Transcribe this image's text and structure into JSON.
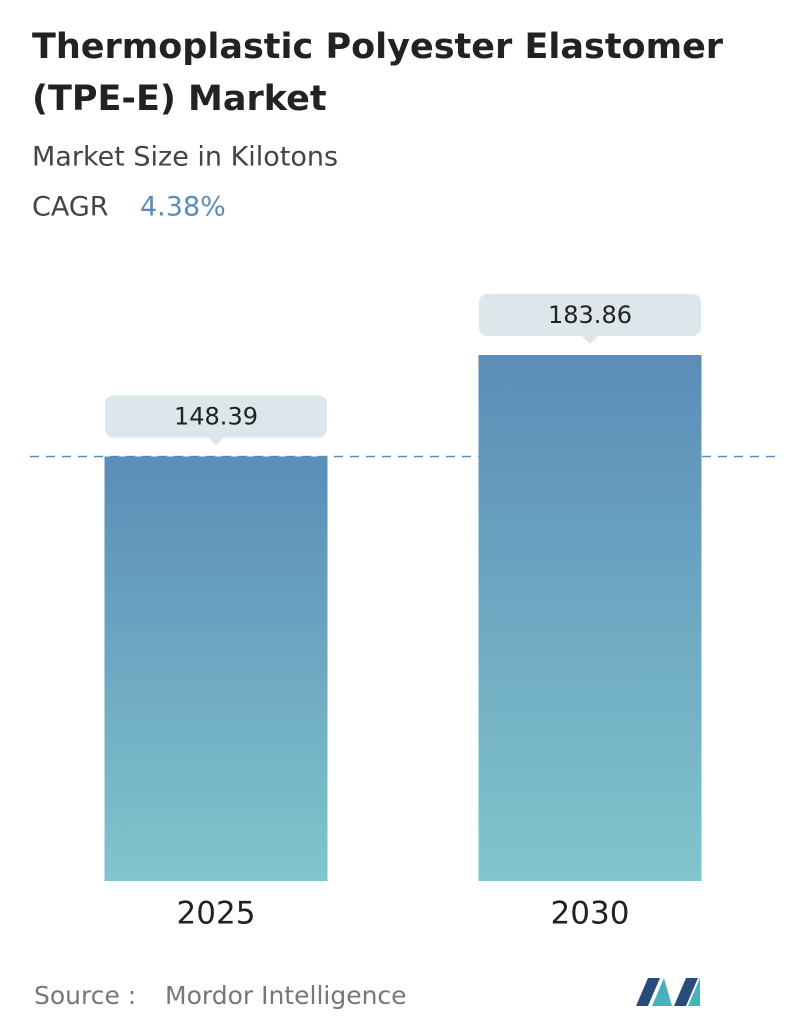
{
  "chart_data": {
    "type": "bar",
    "title": [
      "Thermoplastic Polyester Elastomer",
      "(TPE-E) Market"
    ],
    "subtitle": "Market Size in Kilotons",
    "cagr": {
      "label": "CAGR",
      "value": "4.38%"
    },
    "categories": [
      "2025",
      "2030"
    ],
    "values": [
      148.39,
      183.86
    ],
    "color": [
      "#5b8db8",
      "#80c5cc"
    ],
    "source": {
      "label": "Source :",
      "text": "Mordor Intelligence"
    }
  }
}
